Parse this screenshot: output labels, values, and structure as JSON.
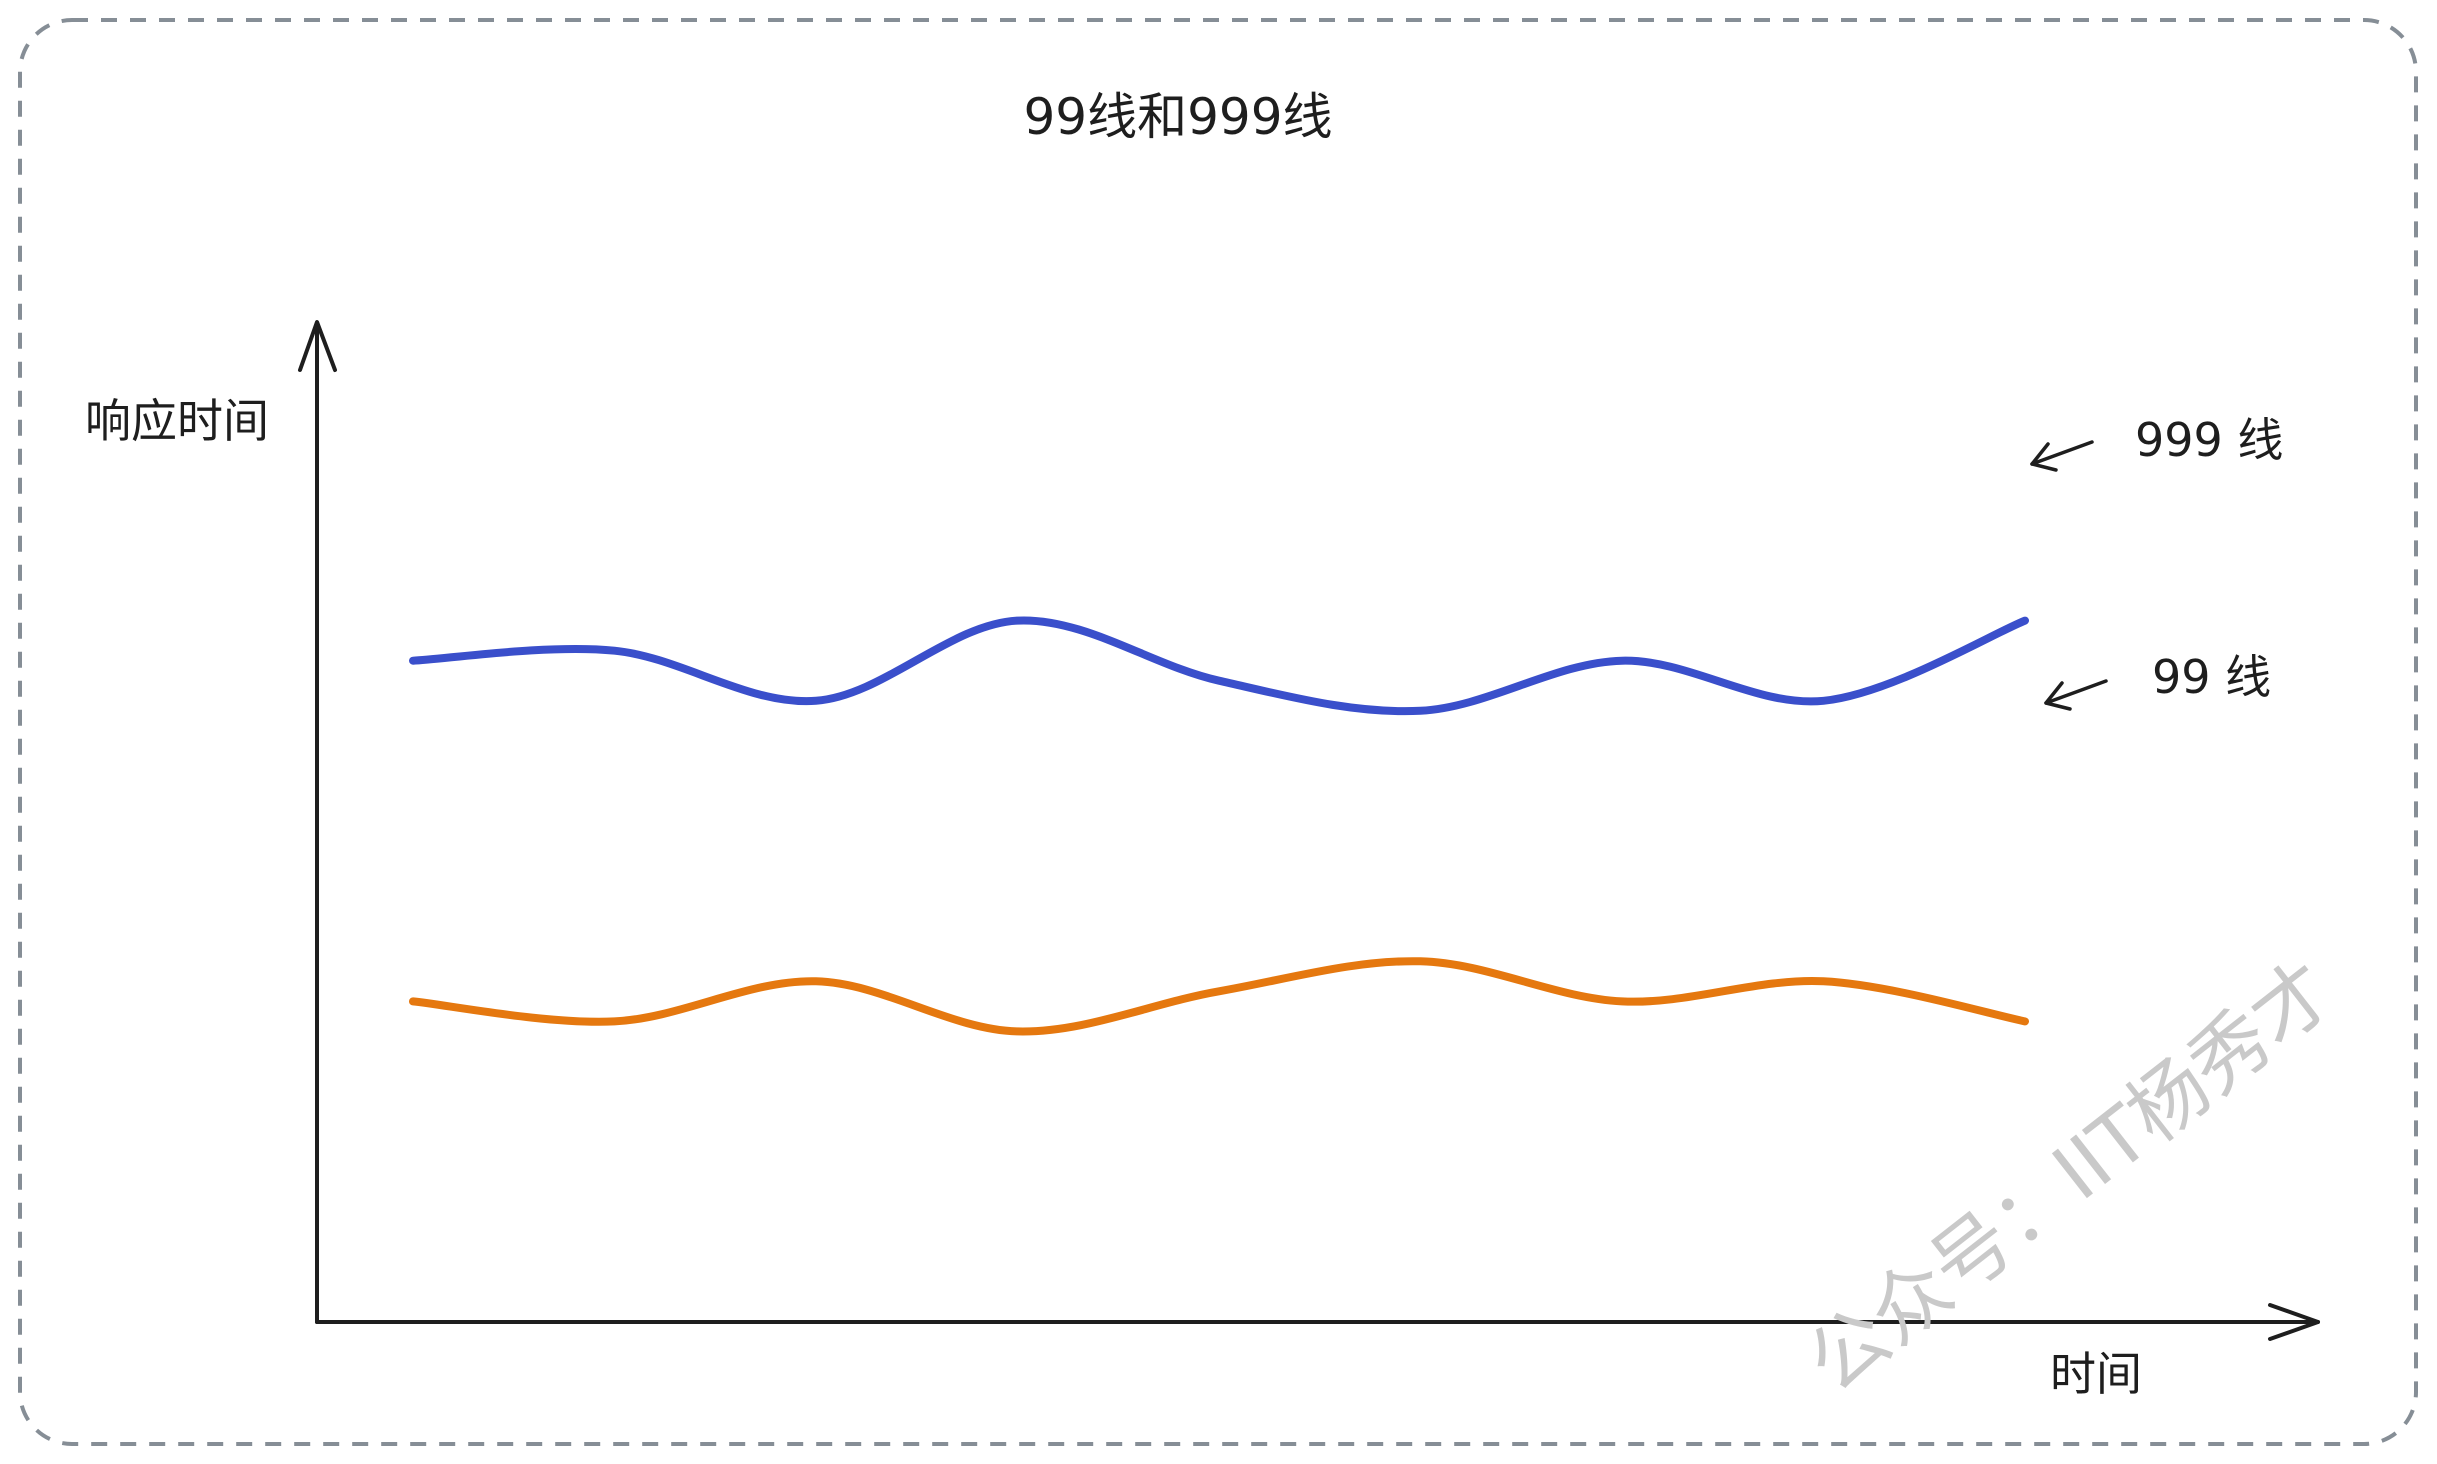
{
  "chart_data": {
    "type": "line",
    "title": "99线和999线",
    "ylabel": "响应时间",
    "xlabel": "时间",
    "grid": false,
    "legend": "inline-right",
    "series": [
      {
        "name": "999 线",
        "color": "#3a4fcb",
        "values": [
          0.66,
          0.67,
          0.62,
          0.7,
          0.64,
          0.61,
          0.66,
          0.62,
          0.7
        ]
      },
      {
        "name": "99 线",
        "color": "#e5780f",
        "values": [
          0.32,
          0.3,
          0.34,
          0.29,
          0.33,
          0.36,
          0.32,
          0.34,
          0.3
        ]
      }
    ]
  },
  "watermark": "公众号：IIT杨秀才",
  "colors": {
    "frame": "#868e96",
    "axis": "#1e1e1e",
    "text": "#1e1e1e",
    "watermark": "#c9c9c9"
  }
}
